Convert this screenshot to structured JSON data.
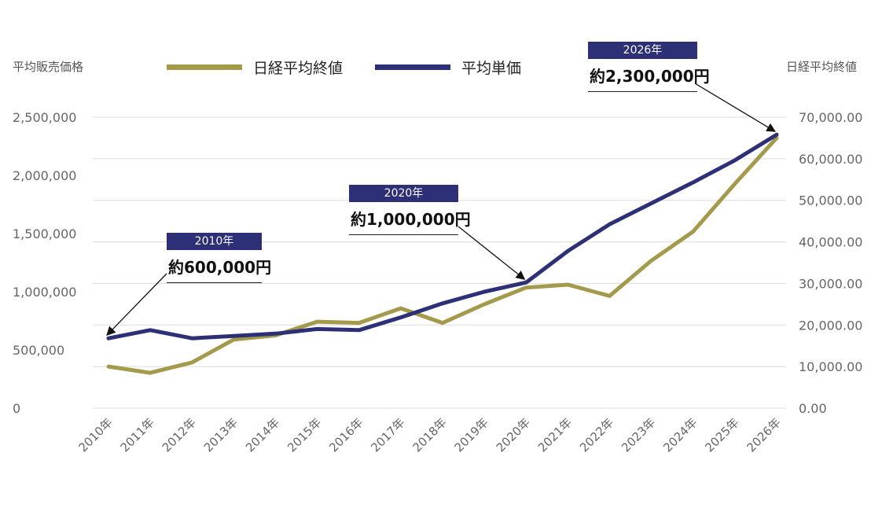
{
  "colors": {
    "nikkei": "#a39a4c",
    "price": "#2d3077",
    "grid": "#dcdcdc",
    "tick": "#666666",
    "callout_box": "#2d3077"
  },
  "axis_titles": {
    "left": "平均販売価格",
    "right": "日経平均終値"
  },
  "legend": [
    {
      "label": "日経平均終値",
      "color_key": "nikkei"
    },
    {
      "label": "平均単価",
      "color_key": "price"
    }
  ],
  "callouts": [
    {
      "year": "2010年",
      "amount": "約600,000円"
    },
    {
      "year": "2020年",
      "amount": "約1,000,000円"
    },
    {
      "year": "2026年",
      "amount": "約2,300,000円"
    }
  ],
  "chart_data": {
    "type": "line",
    "categories": [
      "2010年",
      "2011年",
      "2012年",
      "2013年",
      "2014年",
      "2015年",
      "2016年",
      "2017年",
      "2018年",
      "2019年",
      "2020年",
      "2021年",
      "2022年",
      "2023年",
      "2024年",
      "2025年",
      "2026年"
    ],
    "y_left": {
      "title": "平均販売価格",
      "min": 0,
      "max": 2500000,
      "ticks": [
        "0",
        "500,000",
        "1,000,000",
        "1,500,000",
        "2,000,000",
        "2,500,000"
      ]
    },
    "y_right": {
      "title": "日経平均終値",
      "min": 0,
      "max": 70000,
      "ticks": [
        "0.00",
        "10,000.00",
        "20,000.00",
        "30,000.00",
        "40,000.00",
        "50,000.00",
        "60,000.00",
        "70,000.00"
      ]
    },
    "series": [
      {
        "name": "日経平均終値",
        "axis": "right",
        "color_key": "nikkei",
        "values": [
          10000,
          8500,
          11000,
          16500,
          17500,
          20800,
          20500,
          24000,
          20500,
          25000,
          29000,
          29700,
          27000,
          35500,
          42500,
          54000,
          65000
        ]
      },
      {
        "name": "平均単価",
        "axis": "left",
        "color_key": "price",
        "values": [
          600000,
          670000,
          600000,
          620000,
          640000,
          680000,
          670000,
          780000,
          900000,
          1000000,
          1080000,
          1350000,
          1580000,
          1760000,
          1940000,
          2130000,
          2350000
        ]
      }
    ],
    "grid": true,
    "legend_position": "top"
  }
}
